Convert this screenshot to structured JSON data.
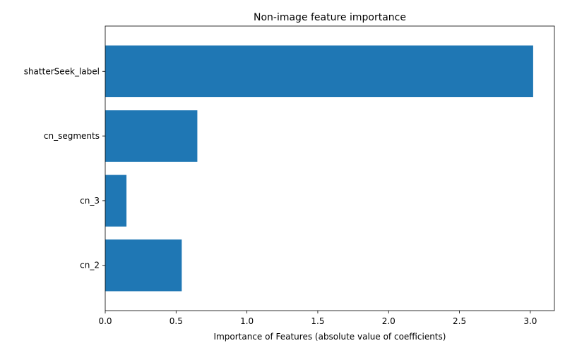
{
  "chart_data": {
    "type": "bar",
    "orientation": "horizontal",
    "title": "Non-image feature importance",
    "xlabel": "Importance of Features (absolute value of coefficients)",
    "ylabel": "",
    "categories": [
      "cn_2",
      "cn_3",
      "cn_segments",
      "shatterSeek_label"
    ],
    "values": [
      0.54,
      0.15,
      0.65,
      3.02
    ],
    "xlim": [
      0.0,
      3.17
    ],
    "xticks": [
      0.0,
      0.5,
      1.0,
      1.5,
      2.0,
      2.5,
      3.0
    ],
    "xtick_labels": [
      "0.0",
      "0.5",
      "1.0",
      "1.5",
      "2.0",
      "2.5",
      "3.0"
    ],
    "grid": false,
    "legend": "none",
    "bar_color": "#1f77b4"
  }
}
